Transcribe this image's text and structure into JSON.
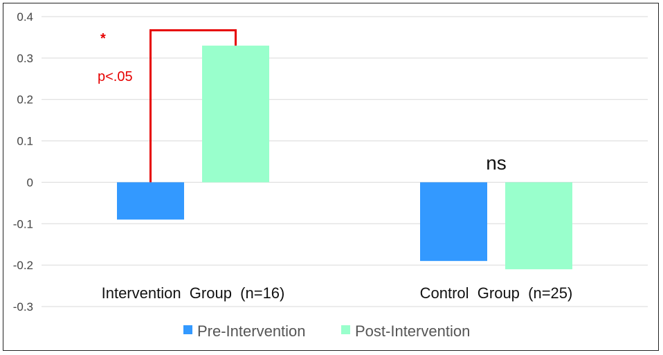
{
  "chart_data": {
    "type": "bar",
    "categories": [
      "Intervention  Group  (n=16)",
      "Control  Group  (n=25)"
    ],
    "series": [
      {
        "name": "Pre-Intervention",
        "values": [
          -0.09,
          -0.19
        ],
        "color": "#3399ff"
      },
      {
        "name": "Post-Intervention",
        "values": [
          0.33,
          -0.21
        ],
        "color": "#99ffcc"
      }
    ],
    "ylim": [
      -0.3,
      0.4
    ],
    "yticks": [
      "0.4",
      "0.3",
      "0.2",
      "0.1",
      "0",
      "-0.1",
      "-0.2",
      "-0.3"
    ],
    "ytick_values": [
      0.4,
      0.3,
      0.2,
      0.1,
      0,
      -0.1,
      -0.2,
      -0.3
    ],
    "grid": true,
    "legend_position": "bottom",
    "annotations": {
      "significance_marker": "*",
      "p_value": "p<.05",
      "not_significant": "ns",
      "highlight_color": "#e60000"
    },
    "title": "",
    "xlabel": "",
    "ylabel": ""
  }
}
